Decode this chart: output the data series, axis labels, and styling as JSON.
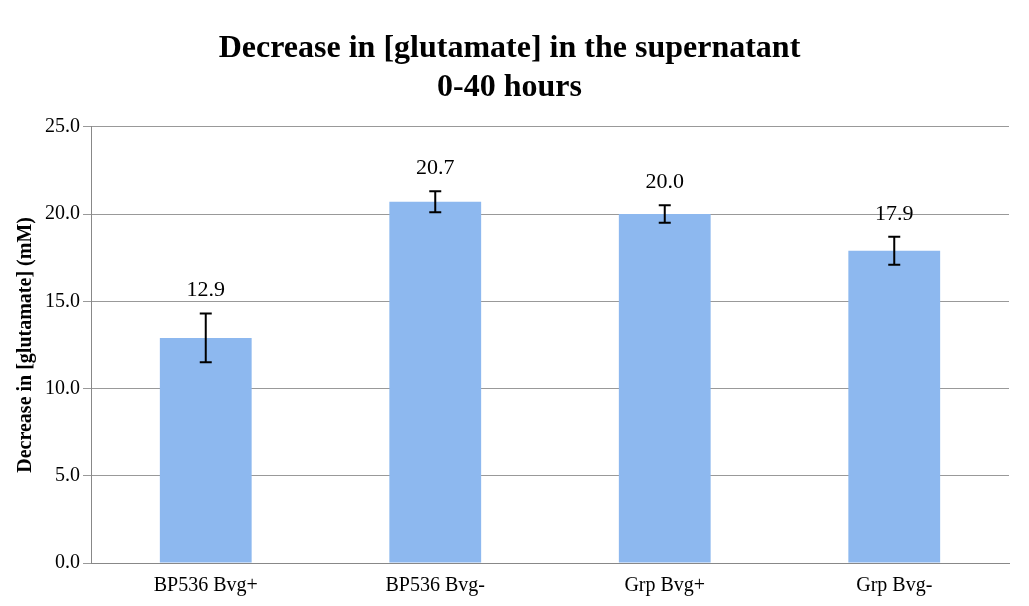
{
  "chart_data": {
    "type": "bar",
    "title": "Decrease in [glutamate] in the supernatant\n0-40 hours",
    "ylabel": "Decrease in [glutamate] (mM)",
    "categories": [
      "BP536 Bvg+",
      "BP536 Bvg-",
      "Grp Bvg+",
      "Grp Bvg-"
    ],
    "values": [
      12.9,
      20.7,
      20.0,
      17.9
    ],
    "errors": [
      1.4,
      0.6,
      0.5,
      0.8
    ],
    "value_labels": [
      "12.9",
      "20.7",
      "20.0",
      "17.9"
    ],
    "color": "#8db8ef",
    "grid": "y",
    "legend": false,
    "ylim": [
      0,
      25
    ],
    "yticks": [
      {
        "value": 0,
        "label": "0.0"
      },
      {
        "value": 5,
        "label": "5.0"
      },
      {
        "value": 10,
        "label": "10.0"
      },
      {
        "value": 15,
        "label": "15.0"
      },
      {
        "value": 20,
        "label": "20.0"
      },
      {
        "value": 25,
        "label": "25.0"
      }
    ]
  }
}
